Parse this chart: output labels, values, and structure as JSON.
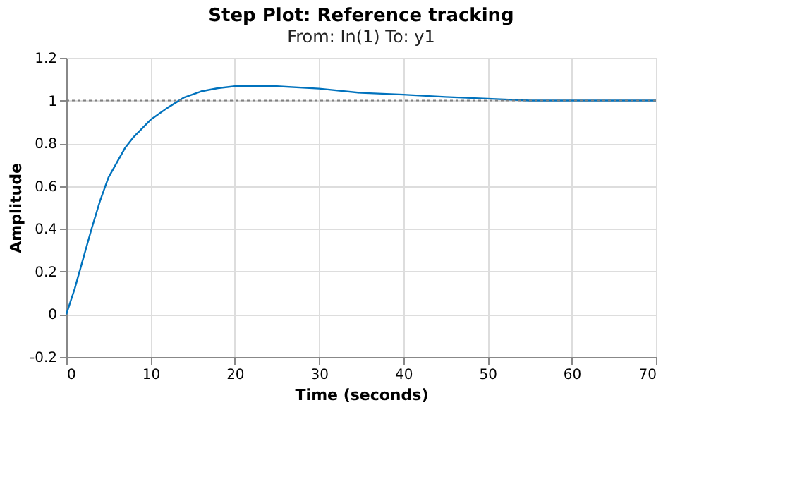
{
  "chart_data": {
    "type": "line",
    "title": "Step Plot: Reference tracking",
    "subtitle": "From: In(1)  To: y1",
    "xlabel": "Time (seconds)",
    "ylabel": "Amplitude",
    "x": [
      0,
      1,
      2,
      3,
      4,
      5,
      6,
      7,
      8,
      10,
      12,
      14,
      16,
      18,
      20,
      25,
      30,
      35,
      40,
      45,
      50,
      55,
      60,
      70
    ],
    "series": [
      {
        "color": "#0072bd",
        "values": [
          0,
          0.12,
          0.26,
          0.4,
          0.53,
          0.64,
          0.71,
          0.78,
          0.83,
          0.91,
          0.966,
          1.015,
          1.043,
          1.058,
          1.067,
          1.067,
          1.056,
          1.036,
          1.028,
          1.017,
          1.009,
          1.0,
          1.0,
          1.0
        ]
      }
    ],
    "xlim": [
      0,
      70
    ],
    "xticks": [
      0,
      10,
      20,
      30,
      40,
      50,
      60,
      70
    ],
    "ylim": [
      -0.2,
      1.2
    ],
    "yticks": [
      -0.2,
      0,
      0.2,
      0.4,
      0.6,
      0.8,
      1,
      1.2
    ],
    "ref_lines": [
      {
        "axis": "y",
        "value": 1,
        "color": "#808080",
        "line_style": "dotted"
      }
    ],
    "grid": true,
    "marker": "none",
    "line_style": "solid"
  }
}
